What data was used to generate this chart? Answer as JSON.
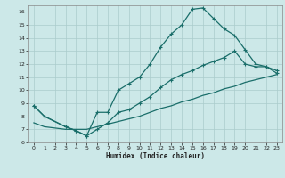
{
  "title": "",
  "xlabel": "Humidex (Indice chaleur)",
  "ylabel": "",
  "background_color": "#cce8e8",
  "grid_color": "#aacccc",
  "line_color": "#1a6e6a",
  "xlim": [
    -0.5,
    23.5
  ],
  "ylim": [
    6,
    16.5
  ],
  "xticks": [
    0,
    1,
    2,
    3,
    4,
    5,
    6,
    7,
    8,
    9,
    10,
    11,
    12,
    13,
    14,
    15,
    16,
    17,
    18,
    19,
    20,
    21,
    22,
    23
  ],
  "yticks": [
    6,
    7,
    8,
    9,
    10,
    11,
    12,
    13,
    14,
    15,
    16
  ],
  "line1_x": [
    0,
    1,
    3,
    4,
    5,
    6,
    7,
    8,
    9,
    10,
    11,
    12,
    13,
    14,
    15,
    16,
    17,
    18,
    19,
    20,
    21,
    22,
    23
  ],
  "line1_y": [
    8.8,
    8.0,
    7.2,
    6.9,
    6.5,
    8.3,
    8.3,
    10.0,
    10.5,
    11.0,
    12.0,
    13.3,
    14.3,
    15.0,
    16.2,
    16.3,
    15.5,
    14.7,
    14.2,
    13.1,
    12.0,
    11.8,
    11.5
  ],
  "line2_x": [
    0,
    1,
    3,
    4,
    5,
    6,
    7,
    8,
    9,
    10,
    11,
    12,
    13,
    14,
    15,
    16,
    17,
    18,
    19,
    20,
    21,
    22,
    23
  ],
  "line2_y": [
    8.8,
    8.0,
    7.2,
    6.9,
    6.5,
    7.0,
    7.5,
    8.3,
    8.5,
    9.0,
    9.5,
    10.2,
    10.8,
    11.2,
    11.5,
    11.9,
    12.2,
    12.5,
    13.0,
    12.0,
    11.8,
    11.8,
    11.3
  ],
  "line3_x": [
    0,
    1,
    3,
    4,
    5,
    6,
    7,
    8,
    9,
    10,
    11,
    12,
    13,
    14,
    15,
    16,
    17,
    18,
    19,
    20,
    21,
    22,
    23
  ],
  "line3_y": [
    7.5,
    7.2,
    7.0,
    7.0,
    7.0,
    7.2,
    7.4,
    7.6,
    7.8,
    8.0,
    8.3,
    8.6,
    8.8,
    9.1,
    9.3,
    9.6,
    9.8,
    10.1,
    10.3,
    10.6,
    10.8,
    11.0,
    11.2
  ]
}
